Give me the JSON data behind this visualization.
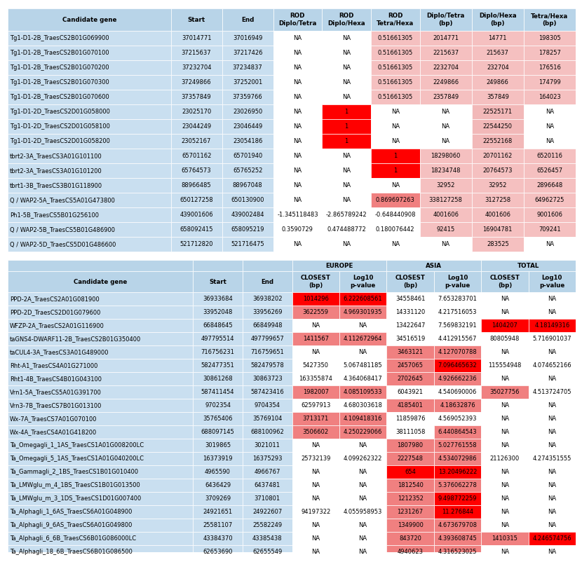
{
  "table1": {
    "headers": [
      "Candidate gene",
      "Start",
      "End",
      "ROD\nDiplo/Tetra",
      "ROD\nDiplo/Hexa",
      "ROD\nTetra/Hexa",
      "Diplo/Tetra\n(bp)",
      "Diplo/Hexa\n(bp)",
      "Tetra/Hexa\n(bp)"
    ],
    "rows": [
      [
        "Tg1-D1-2B_TraesCS2B01G069900",
        "37014771",
        "37016949",
        "NA",
        "NA",
        "0.51661305",
        "2014771",
        "14771",
        "198305"
      ],
      [
        "Tg1-D1-2B_TraesCS2B01G070100",
        "37215637",
        "37217426",
        "NA",
        "NA",
        "0.51661305",
        "2215637",
        "215637",
        "178257"
      ],
      [
        "Tg1-D1-2B_TraesCS2B01G070200",
        "37232704",
        "37234837",
        "NA",
        "NA",
        "0.51661305",
        "2232704",
        "232704",
        "176516"
      ],
      [
        "Tg1-D1-2B_TraesCS2B01G070300",
        "37249866",
        "37252001",
        "NA",
        "NA",
        "0.51661305",
        "2249866",
        "249866",
        "174799"
      ],
      [
        "Tg1-D1-2B_TraesCS2B01G070600",
        "37357849",
        "37359766",
        "NA",
        "NA",
        "0.51661305",
        "2357849",
        "357849",
        "164023"
      ],
      [
        "Tg1-D1-2D_TraesCS2D01G058000",
        "23025170",
        "23026950",
        "NA",
        "1",
        "NA",
        "NA",
        "22525171",
        "NA"
      ],
      [
        "Tg1-D1-2D_TraesCS2D01G058100",
        "23044249",
        "23046449",
        "NA",
        "1",
        "NA",
        "NA",
        "22544250",
        "NA"
      ],
      [
        "Tg1-D1-2D_TraesCS2D01G058200",
        "23052167",
        "23054186",
        "NA",
        "1",
        "NA",
        "NA",
        "22552168",
        "NA"
      ],
      [
        "tbrt2-3A_TraesCS3A01G101100",
        "65701162",
        "65701940",
        "NA",
        "NA",
        "1",
        "18298060",
        "20701162",
        "6520116"
      ],
      [
        "tbrt2-3A_TraesCS3A01G101200",
        "65764573",
        "65765252",
        "NA",
        "NA",
        "1",
        "18234748",
        "20764573",
        "6526457"
      ],
      [
        "tbrt1-3B_TraesCS3B01G118900",
        "88966485",
        "88967048",
        "NA",
        "NA",
        "NA",
        "32952",
        "32952",
        "2896648"
      ],
      [
        "Q / WAP2-5A_TraesCS5A01G473800",
        "650127258",
        "650130900",
        "NA",
        "NA",
        "0.869697263",
        "338127258",
        "3127258",
        "64962725"
      ],
      [
        "Ph1-5B_TraesCS5B01G256100",
        "439001606",
        "439002484",
        "-1.345118483",
        "-2.865789242",
        "-0.648440908",
        "4001606",
        "4001606",
        "9001606"
      ],
      [
        "Q / WAP2-5B_TraesCS5B01G486900",
        "658092415",
        "658095219",
        "0.3590729",
        "0.474488772",
        "0.180076442",
        "92415",
        "16904781",
        "709241"
      ],
      [
        "Q / WAP2-5D_TraesCS5D01G486600",
        "521712820",
        "521716475",
        "NA",
        "NA",
        "NA",
        "NA",
        "283525",
        "NA"
      ]
    ],
    "cell_colors": [
      [
        "#c9dff0",
        "#c9dff0",
        "#c9dff0",
        "#ffffff",
        "#ffffff",
        "#f5c0c0",
        "#f5c0c0",
        "#f5c0c0",
        "#f5c0c0"
      ],
      [
        "#c9dff0",
        "#c9dff0",
        "#c9dff0",
        "#ffffff",
        "#ffffff",
        "#f5c0c0",
        "#f5c0c0",
        "#f5c0c0",
        "#f5c0c0"
      ],
      [
        "#c9dff0",
        "#c9dff0",
        "#c9dff0",
        "#ffffff",
        "#ffffff",
        "#f5c0c0",
        "#f5c0c0",
        "#f5c0c0",
        "#f5c0c0"
      ],
      [
        "#c9dff0",
        "#c9dff0",
        "#c9dff0",
        "#ffffff",
        "#ffffff",
        "#f5c0c0",
        "#f5c0c0",
        "#f5c0c0",
        "#f5c0c0"
      ],
      [
        "#c9dff0",
        "#c9dff0",
        "#c9dff0",
        "#ffffff",
        "#ffffff",
        "#f5c0c0",
        "#f5c0c0",
        "#f5c0c0",
        "#f5c0c0"
      ],
      [
        "#c9dff0",
        "#c9dff0",
        "#c9dff0",
        "#ffffff",
        "#ff0000",
        "#ffffff",
        "#ffffff",
        "#f2b8b8",
        "#ffffff"
      ],
      [
        "#c9dff0",
        "#c9dff0",
        "#c9dff0",
        "#ffffff",
        "#ff0000",
        "#ffffff",
        "#ffffff",
        "#f2b8b8",
        "#ffffff"
      ],
      [
        "#c9dff0",
        "#c9dff0",
        "#c9dff0",
        "#ffffff",
        "#ff0000",
        "#ffffff",
        "#ffffff",
        "#f2b8b8",
        "#ffffff"
      ],
      [
        "#c9dff0",
        "#c9dff0",
        "#c9dff0",
        "#ffffff",
        "#ffffff",
        "#ff0000",
        "#f5c0c0",
        "#f5c0c0",
        "#f5c0c0"
      ],
      [
        "#c9dff0",
        "#c9dff0",
        "#c9dff0",
        "#ffffff",
        "#ffffff",
        "#ff0000",
        "#f5c0c0",
        "#f5c0c0",
        "#f5c0c0"
      ],
      [
        "#c9dff0",
        "#c9dff0",
        "#c9dff0",
        "#ffffff",
        "#ffffff",
        "#ffffff",
        "#f5c0c0",
        "#f5c0c0",
        "#f5c0c0"
      ],
      [
        "#c9dff0",
        "#c9dff0",
        "#c9dff0",
        "#ffffff",
        "#ffffff",
        "#f08080",
        "#f5c0c0",
        "#f5c0c0",
        "#f5c0c0"
      ],
      [
        "#c9dff0",
        "#c9dff0",
        "#c9dff0",
        "#ffffff",
        "#ffffff",
        "#ffffff",
        "#f5c0c0",
        "#f5c0c0",
        "#f5c0c0"
      ],
      [
        "#c9dff0",
        "#c9dff0",
        "#c9dff0",
        "#ffffff",
        "#ffffff",
        "#ffffff",
        "#f5c0c0",
        "#f5c0c0",
        "#f5c0c0"
      ],
      [
        "#c9dff0",
        "#c9dff0",
        "#c9dff0",
        "#ffffff",
        "#ffffff",
        "#ffffff",
        "#ffffff",
        "#f5c0c0",
        "#ffffff"
      ]
    ]
  },
  "table2": {
    "group_headers": [
      "",
      "",
      "",
      "EUROPE",
      "",
      "ASIA",
      "",
      "TOTAL",
      ""
    ],
    "sub_headers": [
      "Candidate gene",
      "Start",
      "End",
      "CLOSEST\n(bp)",
      "Log10\np-value",
      "CLOSEST\n(bp)",
      "Log10\np-value",
      "CLOSEST\n(bp)",
      "Log10\np-value"
    ],
    "rows": [
      [
        "PPD-2A_TraesCS2A01G081900",
        "36933684",
        "36938202",
        "1014296",
        "6.222608561",
        "34558461",
        "7.653283701",
        "NA",
        "NA"
      ],
      [
        "PPD-2D_TraesCS2D01G079600",
        "33952048",
        "33956269",
        "3622559",
        "4.969301935",
        "14331120",
        "4.217516053",
        "NA",
        "NA"
      ],
      [
        "WFZP-2A_TraesCS2A01G116900",
        "66848645",
        "66849948",
        "NA",
        "NA",
        "13422647",
        "7.569832191",
        "1404207",
        "4.18149316"
      ],
      [
        "taGNS4-DWARF11-2B_TraesCS2B01G350400",
        "497795514",
        "497799657",
        "1411567",
        "4.112672964",
        "34516519",
        "4.412915567",
        "80805948",
        "5.716901037"
      ],
      [
        "taCUL4-3A_TraesCS3A01G489000",
        "716756231",
        "716759651",
        "NA",
        "NA",
        "3463121",
        "4.127070788",
        "NA",
        "NA"
      ],
      [
        "Rht-A1_TraesCS4A01G271000",
        "582477351",
        "582479578",
        "5427350",
        "5.067481185",
        "2457065",
        "7.096465632",
        "115554948",
        "4.074652166"
      ],
      [
        "Rht1-4B_TraesCS4B01G043100",
        "30861268",
        "30863723",
        "163355874",
        "4.364068417",
        "2702645",
        "4.926662236",
        "NA",
        "NA"
      ],
      [
        "Vrn1-5A_TraesCS5A01G391700",
        "587411454",
        "587423416",
        "1982007",
        "4.085109533",
        "6043921",
        "4.540690006",
        "35027756",
        "4.513724705"
      ],
      [
        "Vrn3-7B_TraesCS7B01G013100",
        "9702354",
        "9704354",
        "62597913",
        "4.680303618",
        "4185401",
        "4.18632876",
        "NA",
        "NA"
      ],
      [
        "Wx-7A_TraesCS7A01G070100",
        "35765406",
        "35769104",
        "3713171",
        "4.109418316",
        "11859876",
        "4.569052393",
        "NA",
        "NA"
      ],
      [
        "Wx-4A_TraesCS4A01G418200",
        "688097145",
        "688100962",
        "3506602",
        "4.250229066",
        "38111058",
        "6.440864543",
        "NA",
        "NA"
      ],
      [
        "Ta_Omegagli_1_1AS_TraesCS1A01G008200LC",
        "3019865",
        "3021011",
        "NA",
        "NA",
        "1807980",
        "5.027761558",
        "NA",
        "NA"
      ],
      [
        "Ta_Omegagli_5_1AS_TraesCS1A01G040200LC",
        "16373919",
        "16375293",
        "25732139",
        "4.099262322",
        "2227548",
        "4.534072986",
        "21126300",
        "4.274351555"
      ],
      [
        "Ta_Gammagli_2_1BS_TraesCS1B01G010400",
        "4965590",
        "4966767",
        "NA",
        "NA",
        "654",
        "13.20496222",
        "NA",
        "NA"
      ],
      [
        "Ta_LMWglu_m_4_1BS_TraesCS1B01G013500",
        "6436429",
        "6437481",
        "NA",
        "NA",
        "1812540",
        "5.376062278",
        "NA",
        "NA"
      ],
      [
        "Ta_LMWglu_m_3_1DS_TraesCS1D01G007400",
        "3709269",
        "3710801",
        "NA",
        "NA",
        "1212352",
        "9.498772259",
        "NA",
        "NA"
      ],
      [
        "Ta_Alphagli_1_6AS_TraesCS6A01G048900",
        "24921651",
        "24922607",
        "94197322",
        "4.055958953",
        "1231267",
        "11.276844",
        "NA",
        "NA"
      ],
      [
        "Ta_Alphagli_9_6AS_TraesCS6A01G049800",
        "25581107",
        "25582249",
        "NA",
        "NA",
        "1349900",
        "4.673679708",
        "NA",
        "NA"
      ],
      [
        "Ta_Alphagli_6_6B_TraesCS6B01G086000LC",
        "43384370",
        "43385438",
        "NA",
        "NA",
        "843720",
        "4.393608745",
        "1410315",
        "4.246574756"
      ],
      [
        "Ta_Alphagli_18_6B_TraesCS6B01G086500",
        "62653690",
        "62655549",
        "NA",
        "NA",
        "4940623",
        "4.316523025",
        "NA",
        "NA"
      ]
    ],
    "cell_colors": [
      [
        "#c9dff0",
        "#c9dff0",
        "#c9dff0",
        "#ff0000",
        "#ff0000",
        "#ffffff",
        "#ffffff",
        "#ffffff",
        "#ffffff"
      ],
      [
        "#c9dff0",
        "#c9dff0",
        "#c9dff0",
        "#f08080",
        "#f08080",
        "#ffffff",
        "#ffffff",
        "#ffffff",
        "#ffffff"
      ],
      [
        "#c9dff0",
        "#c9dff0",
        "#c9dff0",
        "#ffffff",
        "#ffffff",
        "#ffffff",
        "#ffffff",
        "#ff0000",
        "#ff0000"
      ],
      [
        "#c9dff0",
        "#c9dff0",
        "#c9dff0",
        "#f08080",
        "#f08080",
        "#ffffff",
        "#ffffff",
        "#ffffff",
        "#ffffff"
      ],
      [
        "#c9dff0",
        "#c9dff0",
        "#c9dff0",
        "#ffffff",
        "#ffffff",
        "#f08080",
        "#f08080",
        "#ffffff",
        "#ffffff"
      ],
      [
        "#c9dff0",
        "#c9dff0",
        "#c9dff0",
        "#ffffff",
        "#ffffff",
        "#f08080",
        "#ff0000",
        "#ffffff",
        "#ffffff"
      ],
      [
        "#c9dff0",
        "#c9dff0",
        "#c9dff0",
        "#ffffff",
        "#ffffff",
        "#f08080",
        "#f08080",
        "#ffffff",
        "#ffffff"
      ],
      [
        "#c9dff0",
        "#c9dff0",
        "#c9dff0",
        "#f08080",
        "#f08080",
        "#ffffff",
        "#ffffff",
        "#f08080",
        "#ffffff"
      ],
      [
        "#c9dff0",
        "#c9dff0",
        "#c9dff0",
        "#ffffff",
        "#ffffff",
        "#f08080",
        "#f08080",
        "#ffffff",
        "#ffffff"
      ],
      [
        "#c9dff0",
        "#c9dff0",
        "#c9dff0",
        "#f08080",
        "#f08080",
        "#ffffff",
        "#ffffff",
        "#ffffff",
        "#ffffff"
      ],
      [
        "#c9dff0",
        "#c9dff0",
        "#c9dff0",
        "#f08080",
        "#f08080",
        "#ffffff",
        "#f08080",
        "#ffffff",
        "#ffffff"
      ],
      [
        "#c9dff0",
        "#c9dff0",
        "#c9dff0",
        "#ffffff",
        "#ffffff",
        "#f08080",
        "#f08080",
        "#ffffff",
        "#ffffff"
      ],
      [
        "#c9dff0",
        "#c9dff0",
        "#c9dff0",
        "#ffffff",
        "#ffffff",
        "#f08080",
        "#f08080",
        "#ffffff",
        "#ffffff"
      ],
      [
        "#c9dff0",
        "#c9dff0",
        "#c9dff0",
        "#ffffff",
        "#ffffff",
        "#ff0000",
        "#ff0000",
        "#ffffff",
        "#ffffff"
      ],
      [
        "#c9dff0",
        "#c9dff0",
        "#c9dff0",
        "#ffffff",
        "#ffffff",
        "#f08080",
        "#f08080",
        "#ffffff",
        "#ffffff"
      ],
      [
        "#c9dff0",
        "#c9dff0",
        "#c9dff0",
        "#ffffff",
        "#ffffff",
        "#f08080",
        "#ff0000",
        "#ffffff",
        "#ffffff"
      ],
      [
        "#c9dff0",
        "#c9dff0",
        "#c9dff0",
        "#ffffff",
        "#ffffff",
        "#f08080",
        "#ff0000",
        "#ffffff",
        "#ffffff"
      ],
      [
        "#c9dff0",
        "#c9dff0",
        "#c9dff0",
        "#ffffff",
        "#ffffff",
        "#f08080",
        "#f08080",
        "#ffffff",
        "#ffffff"
      ],
      [
        "#c9dff0",
        "#c9dff0",
        "#c9dff0",
        "#ffffff",
        "#ffffff",
        "#f08080",
        "#f08080",
        "#f08080",
        "#ff0000"
      ],
      [
        "#c9dff0",
        "#c9dff0",
        "#c9dff0",
        "#ffffff",
        "#ffffff",
        "#f08080",
        "#f08080",
        "#ffffff",
        "#ffffff"
      ]
    ]
  },
  "header_bg": "#b8d4e8",
  "font_size": 6.0
}
